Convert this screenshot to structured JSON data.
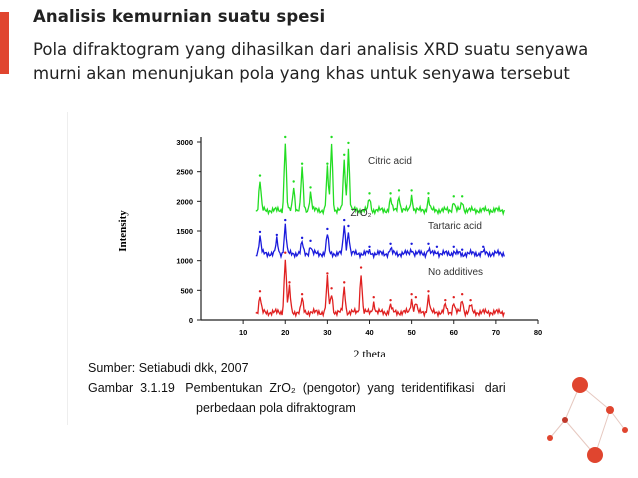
{
  "slide": {
    "heading": "Analisis kemurnian suatu spesi",
    "paragraph": "Pola difraktogram yang dihasilkan dari analisis XRD suatu senyawa murni akan menunjukan pola yang khas untuk senyawa tersebut",
    "accent_color": "#e0452f"
  },
  "caption": {
    "source": "Sumber: Setiabudi dkk, 2007",
    "figure_label": "Gambar",
    "figure_number": "3.1.19",
    "figure_text_1": "Pembentukan",
    "formula": "ZrO₂",
    "figure_text_2": "(pengotor)",
    "figure_text_3": "yang",
    "figure_text_4": "teridentifikasi",
    "figure_text_5": "dari",
    "figure_line2": "perbedaan pola difraktogram"
  },
  "chart_data": {
    "type": "line",
    "xlabel": "2 theta",
    "ylabel": "Intensity",
    "xlim": [
      0,
      80
    ],
    "ylim": [
      0,
      3000
    ],
    "x_ticks": [
      10,
      20,
      30,
      40,
      50,
      60,
      70,
      80
    ],
    "y_ticks": [
      0,
      500,
      1000,
      1500,
      2000,
      2500,
      3000
    ],
    "annotation": "ZrO₂",
    "series": [
      {
        "name": "Citric acid",
        "color": "#22dd22",
        "baseline": 1850,
        "peaks": [
          [
            14,
            2350
          ],
          [
            20,
            3000
          ],
          [
            22,
            2250
          ],
          [
            24,
            2550
          ],
          [
            26,
            2150
          ],
          [
            30,
            2550
          ],
          [
            31,
            3000
          ],
          [
            34,
            2700
          ],
          [
            35,
            2900
          ],
          [
            40,
            2050
          ],
          [
            45,
            2050
          ],
          [
            47,
            2100
          ],
          [
            50,
            2100
          ],
          [
            54,
            2050
          ],
          [
            60,
            2000
          ],
          [
            62,
            2000
          ]
        ]
      },
      {
        "name": "Tartaric acid",
        "color": "#1a1adc",
        "baseline": 1120,
        "peaks": [
          [
            14,
            1400
          ],
          [
            18,
            1350
          ],
          [
            20,
            1600
          ],
          [
            24,
            1300
          ],
          [
            26,
            1250
          ],
          [
            30,
            1450
          ],
          [
            34,
            1600
          ],
          [
            35,
            1500
          ],
          [
            40,
            1150
          ],
          [
            45,
            1200
          ],
          [
            50,
            1200
          ],
          [
            54,
            1200
          ],
          [
            56,
            1150
          ],
          [
            60,
            1150
          ],
          [
            62,
            1100
          ],
          [
            67,
            1150
          ]
        ]
      },
      {
        "name": "No additives",
        "color": "#e02020",
        "baseline": 130,
        "peaks": [
          [
            14,
            400
          ],
          [
            20,
            1050
          ],
          [
            21,
            550
          ],
          [
            24,
            350
          ],
          [
            30,
            700
          ],
          [
            31,
            450
          ],
          [
            34,
            550
          ],
          [
            38,
            800
          ],
          [
            41,
            300
          ],
          [
            45,
            250
          ],
          [
            50,
            350
          ],
          [
            51,
            300
          ],
          [
            54,
            400
          ],
          [
            58,
            250
          ],
          [
            60,
            300
          ],
          [
            62,
            350
          ],
          [
            64,
            250
          ]
        ]
      }
    ]
  }
}
